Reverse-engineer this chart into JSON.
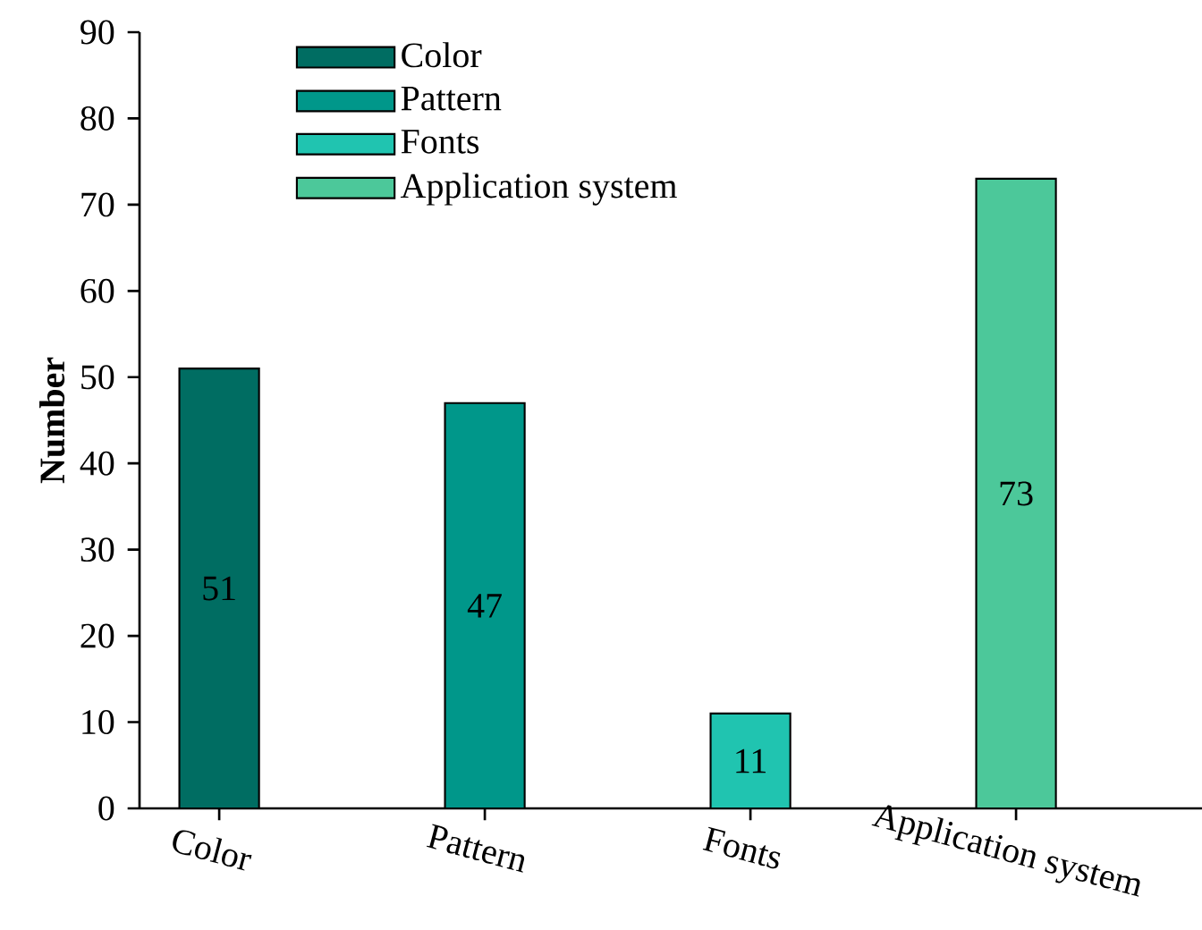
{
  "chart_data": {
    "type": "bar",
    "ylabel": "Number",
    "categories": [
      "Color",
      "Pattern",
      "Fonts",
      "Application system"
    ],
    "series": [
      {
        "name": "Color",
        "color": "#006d62",
        "values": [
          51,
          null,
          null,
          null
        ]
      },
      {
        "name": "Pattern",
        "color": "#00978a",
        "values": [
          null,
          47,
          null,
          null
        ]
      },
      {
        "name": "Fonts",
        "color": "#20c4b0",
        "values": [
          null,
          null,
          11,
          null
        ]
      },
      {
        "name": "Application system",
        "color": "#4cc89a",
        "values": [
          null,
          null,
          null,
          73
        ]
      }
    ],
    "ylim": [
      0,
      90
    ],
    "yticks": [
      0,
      10,
      20,
      30,
      40,
      50,
      60,
      70,
      80,
      90
    ],
    "data_labels": true,
    "legend": "top left",
    "grid": false
  }
}
